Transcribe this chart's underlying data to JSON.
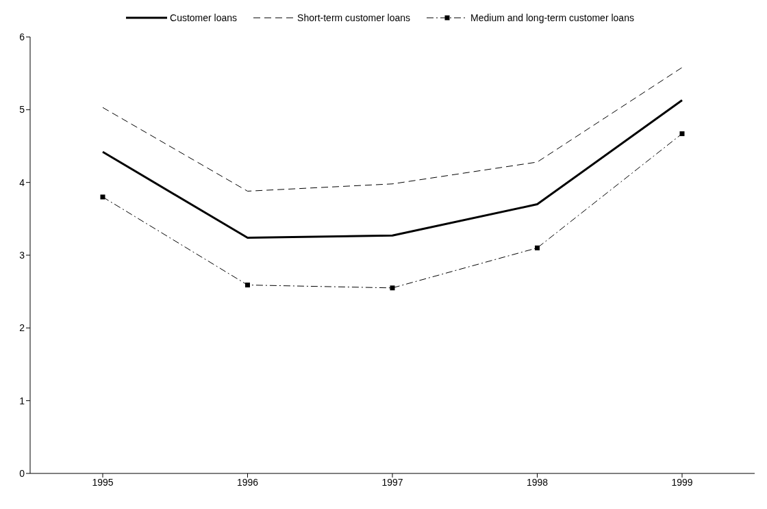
{
  "chart_data": {
    "type": "line",
    "categories": [
      "1995",
      "1996",
      "1997",
      "1998",
      "1999"
    ],
    "series": [
      {
        "name": "Customer loans",
        "color": "#000000",
        "line_style": "solid",
        "marker": "none",
        "values": [
          4.42,
          3.24,
          3.27,
          3.7,
          5.13
        ]
      },
      {
        "name": "Short-term customer loans",
        "color": "#000000",
        "line_style": "dashed",
        "marker": "none",
        "values": [
          5.03,
          3.88,
          3.98,
          4.28,
          5.58
        ]
      },
      {
        "name": "Medium and long-term customer loans",
        "color": "#000000",
        "line_style": "dashdot",
        "marker": "square",
        "values": [
          3.8,
          2.59,
          2.55,
          3.1,
          4.67
        ]
      }
    ],
    "ylim": [
      0,
      6
    ],
    "yticks": [
      0,
      1,
      2,
      3,
      4,
      5,
      6
    ],
    "grid": false,
    "legend": "top"
  }
}
